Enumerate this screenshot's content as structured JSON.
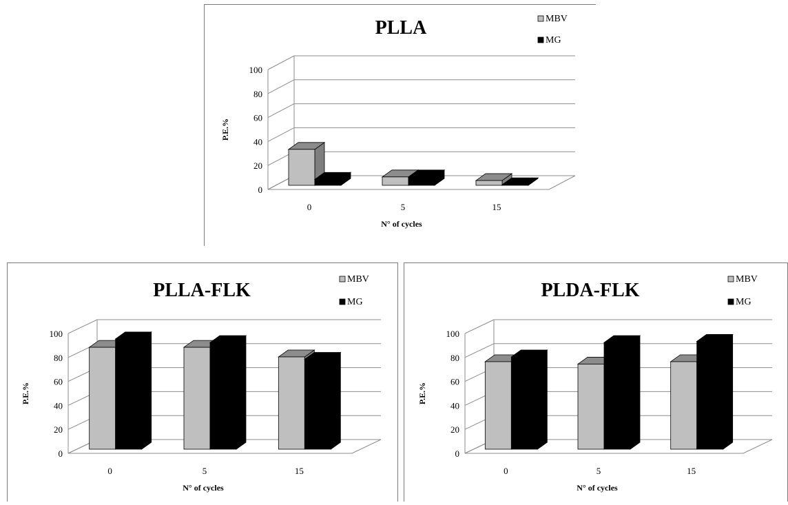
{
  "chart_data": [
    {
      "type": "bar",
      "title": "PLLA",
      "xlabel": "N° of cycles",
      "ylabel": "P.E.%",
      "categories": [
        "0",
        "5",
        "15"
      ],
      "series": [
        {
          "name": "MBV",
          "values": [
            30,
            7,
            4
          ],
          "color": "#bfbfbf"
        },
        {
          "name": "MG",
          "values": [
            5,
            7,
            0.5
          ],
          "color": "#000000"
        }
      ],
      "ylim": [
        0,
        100
      ],
      "yticks": [
        "0",
        "20",
        "40",
        "60",
        "80",
        "100"
      ],
      "legend": "top-right",
      "grid": true
    },
    {
      "type": "bar",
      "title": "PLLA-FLK",
      "xlabel": "N° of cycles",
      "ylabel": "P.E.%",
      "categories": [
        "0",
        "5",
        "15"
      ],
      "series": [
        {
          "name": "MBV",
          "values": [
            85,
            85,
            77
          ],
          "color": "#bfbfbf"
        },
        {
          "name": "MG",
          "values": [
            92,
            89,
            75
          ],
          "color": "#000000"
        }
      ],
      "ylim": [
        0,
        100
      ],
      "yticks": [
        "0",
        "20",
        "40",
        "60",
        "80",
        "100"
      ],
      "legend": "top-right",
      "grid": true
    },
    {
      "type": "bar",
      "title": "PLDA-FLK",
      "xlabel": "N° of cycles",
      "ylabel": "P.E.%",
      "categories": [
        "0",
        "5",
        "15"
      ],
      "series": [
        {
          "name": "MBV",
          "values": [
            73,
            71,
            73
          ],
          "color": "#bfbfbf"
        },
        {
          "name": "MG",
          "values": [
            77,
            89,
            90
          ],
          "color": "#000000"
        }
      ],
      "ylim": [
        0,
        100
      ],
      "yticks": [
        "0",
        "20",
        "40",
        "60",
        "80",
        "100"
      ],
      "legend": "top-right",
      "grid": true
    }
  ]
}
